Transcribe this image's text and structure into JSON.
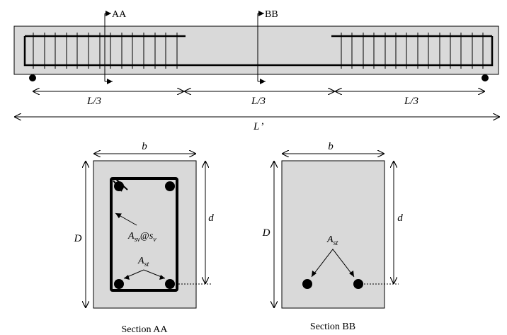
{
  "beam": {
    "section_aa_marker": "AA",
    "section_bb_marker": "BB",
    "span_thirds": [
      "L/3",
      "L/3",
      "L/3"
    ],
    "total_span": {
      "symbol": "L",
      "prime": "’"
    }
  },
  "section_aa": {
    "caption": "Section AA",
    "width_label": "b",
    "depth_label": "d",
    "overall_depth_label": "D",
    "stirrup_label": {
      "area": "A",
      "area_sub": "sv",
      "at": "@",
      "spacing": "s",
      "spacing_sub": "v"
    },
    "tension_steel_label": {
      "symbol": "A",
      "sub": "st"
    }
  },
  "section_bb": {
    "caption": "Section BB",
    "width_label": "b",
    "depth_label": "d",
    "overall_depth_label": "D",
    "tension_steel_label": {
      "symbol": "A",
      "sub": "st"
    }
  },
  "colors": {
    "fill": "#d9d9d9",
    "line": "#000000"
  }
}
